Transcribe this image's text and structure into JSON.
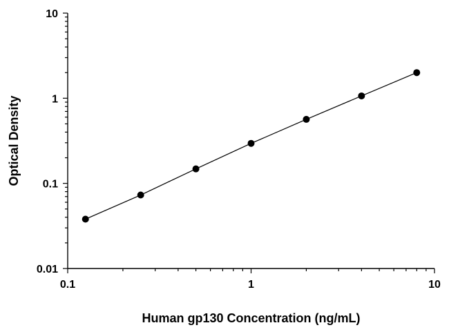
{
  "chart_data": {
    "type": "scatter",
    "xlabel": "Human gp130 Concentration (ng/mL)",
    "ylabel": "Optical Density",
    "xscale": "log",
    "yscale": "log",
    "xlim": [
      0.1,
      10
    ],
    "ylim": [
      0.01,
      10
    ],
    "xticks": [
      0.1,
      1,
      10
    ],
    "xtick_labels": [
      "0.1",
      "1",
      "10"
    ],
    "yticks": [
      0.01,
      0.1,
      1,
      10
    ],
    "ytick_labels": [
      "0.01",
      "0.1",
      "1",
      "10"
    ],
    "grid": false,
    "fit_line": true,
    "series": [
      {
        "x": [
          0.125,
          0.25,
          0.5,
          1,
          2,
          4,
          8
        ],
        "y": [
          0.038,
          0.073,
          0.148,
          0.295,
          0.565,
          1.065,
          2.0
        ]
      }
    ]
  }
}
